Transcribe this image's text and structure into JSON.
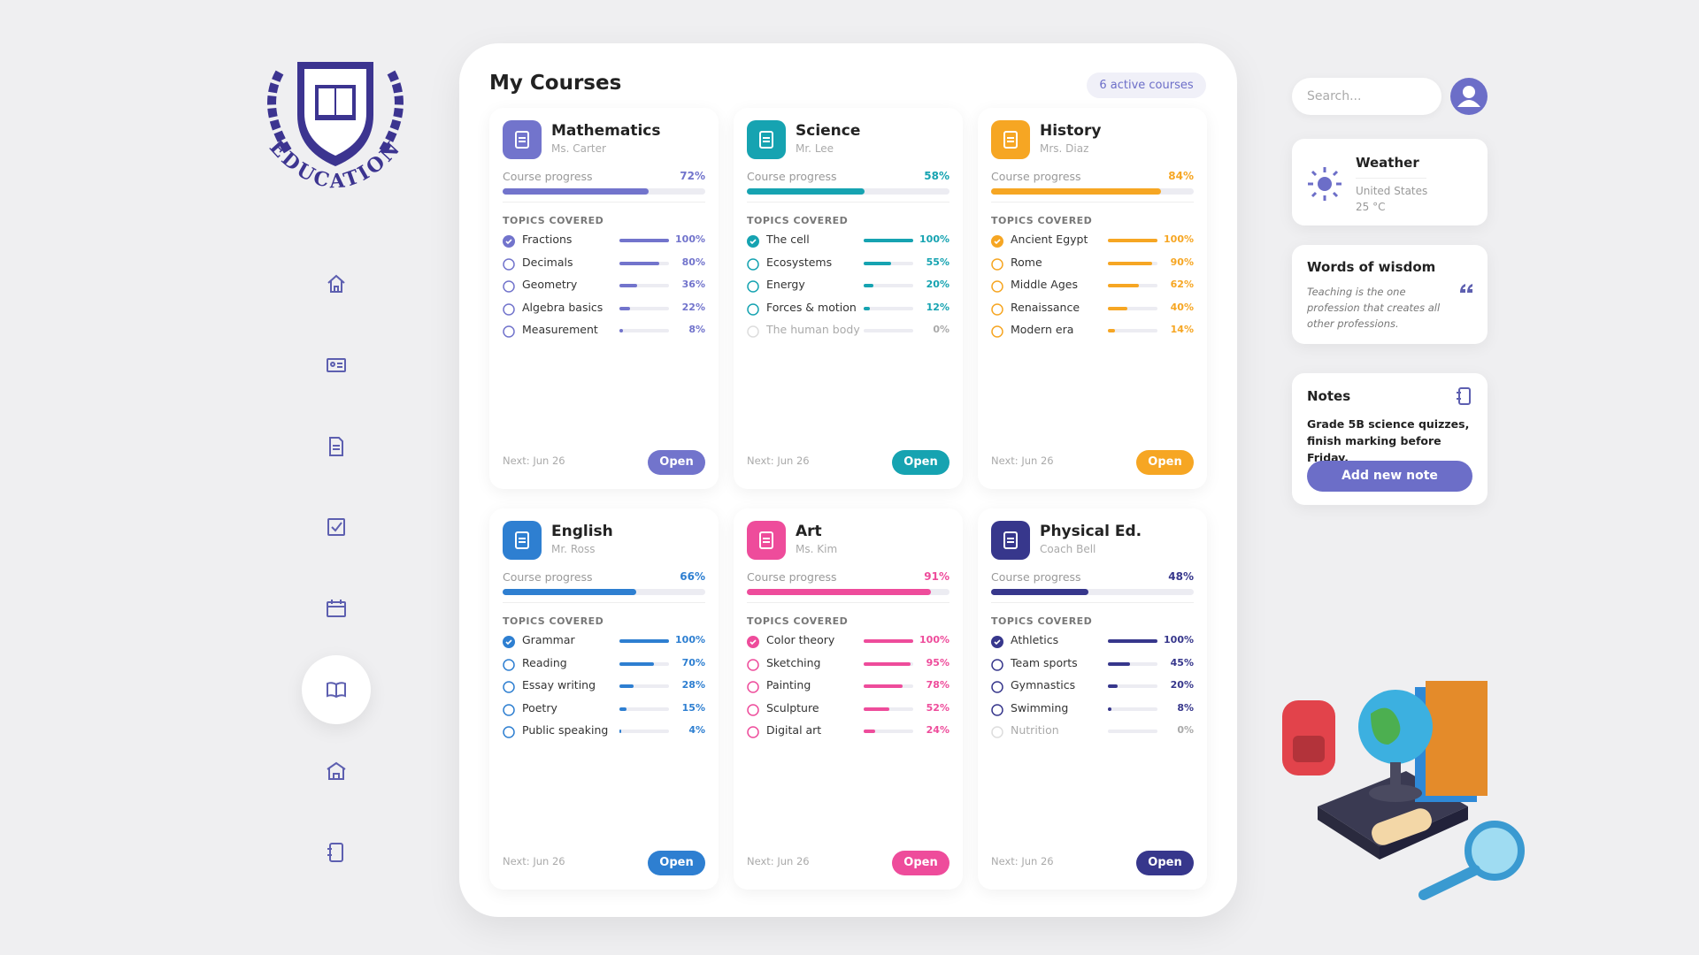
{
  "logo": {
    "text": "EDUCATION"
  },
  "main": {
    "title": "My Courses",
    "badge": "6 active courses",
    "progress_caption": "Course progress",
    "topics_caption": "TOPICS COVERED",
    "next": "Next: Jun 26",
    "open": "Open"
  },
  "courses": [
    {
      "title": "Mathematics",
      "teacher": "Ms. Carter",
      "color": "#7274cc",
      "progress": {
        "value": 72,
        "label": "72%"
      },
      "topics": [
        {
          "name": "Fractions",
          "done": true,
          "progress": {
            "value": 100,
            "label": "100%"
          }
        },
        {
          "name": "Decimals",
          "done": false,
          "progress": {
            "value": 80,
            "label": "80%"
          }
        },
        {
          "name": "Geometry",
          "done": false,
          "progress": {
            "value": 36,
            "label": "36%"
          }
        },
        {
          "name": "Algebra basics",
          "done": false,
          "progress": {
            "value": 22,
            "label": "22%"
          }
        },
        {
          "name": "Measurement",
          "done": false,
          "progress": {
            "value": 8,
            "label": "8%"
          }
        }
      ]
    },
    {
      "title": "Science",
      "teacher": "Mr. Lee",
      "color": "#16a3b1",
      "progress": {
        "value": 58,
        "label": "58%"
      },
      "topics": [
        {
          "name": "The cell",
          "done": true,
          "progress": {
            "value": 100,
            "label": "100%"
          }
        },
        {
          "name": "Ecosystems",
          "done": false,
          "progress": {
            "value": 55,
            "label": "55%"
          }
        },
        {
          "name": "Energy",
          "done": false,
          "progress": {
            "value": 20,
            "label": "20%"
          }
        },
        {
          "name": "Forces & motion",
          "done": false,
          "progress": {
            "value": 12,
            "label": "12%"
          }
        },
        {
          "name": "The human body",
          "done": false,
          "progress": {
            "value": 0,
            "label": "0%"
          }
        }
      ]
    },
    {
      "title": "History",
      "teacher": "Mrs. Diaz",
      "color": "#f6a623",
      "progress": {
        "value": 84,
        "label": "84%"
      },
      "topics": [
        {
          "name": "Ancient Egypt",
          "done": true,
          "progress": {
            "value": 100,
            "label": "100%"
          }
        },
        {
          "name": "Rome",
          "done": false,
          "progress": {
            "value": 90,
            "label": "90%"
          }
        },
        {
          "name": "Middle Ages",
          "done": false,
          "progress": {
            "value": 62,
            "label": "62%"
          }
        },
        {
          "name": "Renaissance",
          "done": false,
          "progress": {
            "value": 40,
            "label": "40%"
          }
        },
        {
          "name": "Modern era",
          "done": false,
          "progress": {
            "value": 14,
            "label": "14%"
          }
        }
      ]
    },
    {
      "title": "English",
      "teacher": "Mr. Ross",
      "color": "#2e7fd1",
      "progress": {
        "value": 66,
        "label": "66%"
      },
      "topics": [
        {
          "name": "Grammar",
          "done": true,
          "progress": {
            "value": 100,
            "label": "100%"
          }
        },
        {
          "name": "Reading",
          "done": false,
          "progress": {
            "value": 70,
            "label": "70%"
          }
        },
        {
          "name": "Essay writing",
          "done": false,
          "progress": {
            "value": 28,
            "label": "28%"
          }
        },
        {
          "name": "Poetry",
          "done": false,
          "progress": {
            "value": 15,
            "label": "15%"
          }
        },
        {
          "name": "Public speaking",
          "done": false,
          "progress": {
            "value": 4,
            "label": "4%"
          }
        }
      ]
    },
    {
      "title": "Art",
      "teacher": "Ms. Kim",
      "color": "#ee4c9b",
      "progress": {
        "value": 91,
        "label": "91%"
      },
      "topics": [
        {
          "name": "Color theory",
          "done": true,
          "progress": {
            "value": 100,
            "label": "100%"
          }
        },
        {
          "name": "Sketching",
          "done": false,
          "progress": {
            "value": 95,
            "label": "95%"
          }
        },
        {
          "name": "Painting",
          "done": false,
          "progress": {
            "value": 78,
            "label": "78%"
          }
        },
        {
          "name": "Sculpture",
          "done": false,
          "progress": {
            "value": 52,
            "label": "52%"
          }
        },
        {
          "name": "Digital art",
          "done": false,
          "progress": {
            "value": 24,
            "label": "24%"
          }
        }
      ]
    },
    {
      "title": "Physical Ed.",
      "teacher": "Coach Bell",
      "color": "#37378c",
      "progress": {
        "value": 48,
        "label": "48%"
      },
      "topics": [
        {
          "name": "Athletics",
          "done": true,
          "progress": {
            "value": 100,
            "label": "100%"
          }
        },
        {
          "name": "Team sports",
          "done": false,
          "progress": {
            "value": 45,
            "label": "45%"
          }
        },
        {
          "name": "Gymnastics",
          "done": false,
          "progress": {
            "value": 20,
            "label": "20%"
          }
        },
        {
          "name": "Swimming",
          "done": false,
          "progress": {
            "value": 8,
            "label": "8%"
          }
        },
        {
          "name": "Nutrition",
          "done": false,
          "progress": {
            "value": 0,
            "label": "0%"
          }
        }
      ]
    }
  ],
  "search": {
    "placeholder": "Search..."
  },
  "weather": {
    "title": "Weather",
    "place": "United States",
    "temp": "25 °C"
  },
  "wisdom": {
    "title": "Words of wisdom",
    "quote": "Teaching is the one profession that creates all other professions."
  },
  "notes": {
    "title": "Notes",
    "text": "Grade 5B science quizzes, finish marking before Friday.",
    "button": "Add new note"
  }
}
